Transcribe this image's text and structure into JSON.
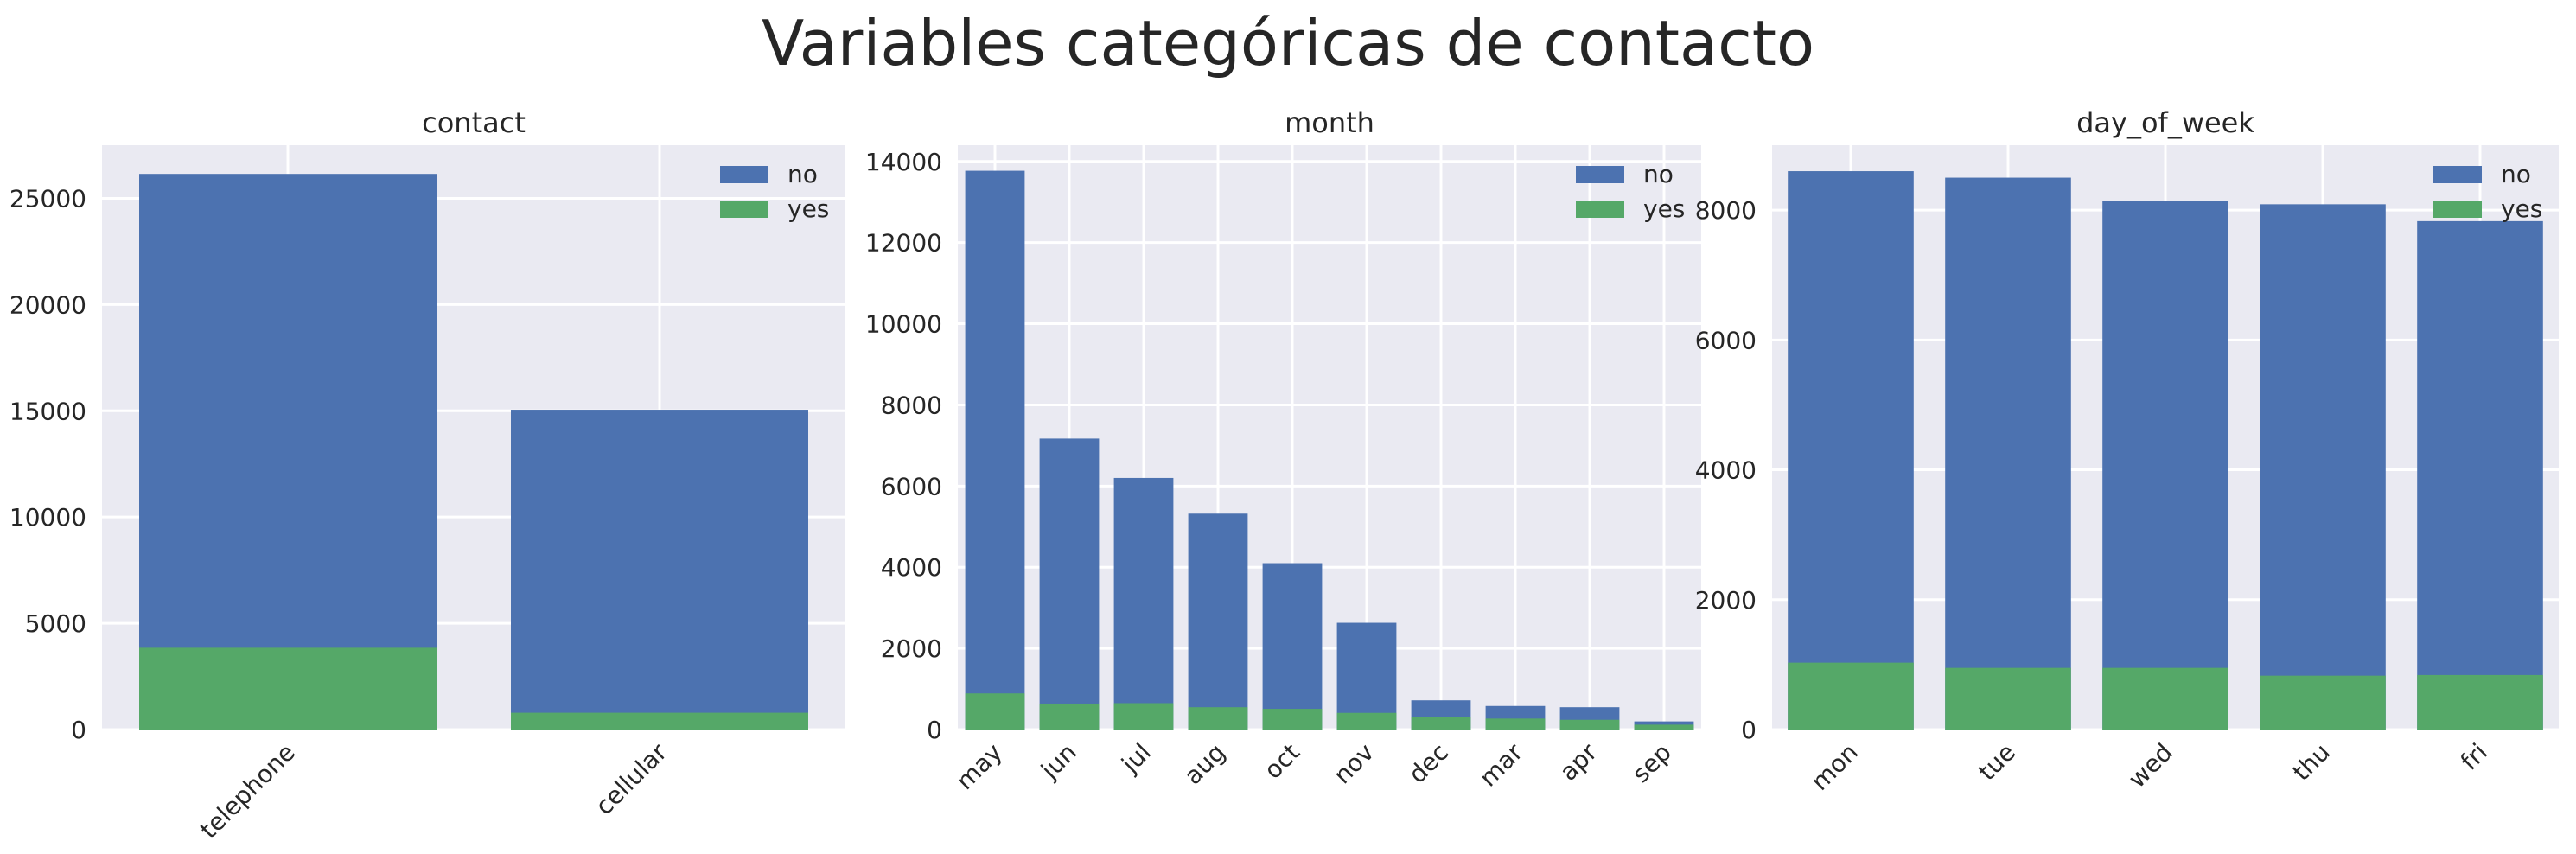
{
  "figure": {
    "title": "Variables categóricas de contacto",
    "colors": {
      "no": "#4C72B0",
      "yes": "#55A868",
      "axes_bg": "#EAEAF2",
      "grid": "#FFFFFF",
      "text": "#262626"
    }
  },
  "chart_data": [
    {
      "type": "bar",
      "title": "contact",
      "categories": [
        "telephone",
        "cellular"
      ],
      "series": [
        {
          "name": "no",
          "values": [
            26150,
            15050
          ]
        },
        {
          "name": "yes",
          "values": [
            3850,
            790
          ]
        }
      ],
      "ylim": [
        0,
        27500
      ],
      "yticks": [
        0,
        5000,
        10000,
        15000,
        20000,
        25000
      ],
      "grid": true,
      "legend": "top-right",
      "stacking": "overlaid"
    },
    {
      "type": "bar",
      "title": "month",
      "categories": [
        "may",
        "jun",
        "jul",
        "aug",
        "oct",
        "nov",
        "dec",
        "mar",
        "apr",
        "sep"
      ],
      "series": [
        {
          "name": "no",
          "values": [
            13770,
            7170,
            6200,
            5320,
            4100,
            2630,
            720,
            580,
            550,
            200
          ]
        },
        {
          "name": "yes",
          "values": [
            890,
            640,
            650,
            550,
            510,
            410,
            300,
            270,
            240,
            120
          ]
        }
      ],
      "ylim": [
        0,
        14400
      ],
      "yticks": [
        0,
        2000,
        4000,
        6000,
        8000,
        10000,
        12000,
        14000
      ],
      "grid": true,
      "legend": "top-right",
      "stacking": "overlaid"
    },
    {
      "type": "bar",
      "title": "day_of_week",
      "categories": [
        "mon",
        "tue",
        "wed",
        "thu",
        "fri"
      ],
      "series": [
        {
          "name": "no",
          "values": [
            8600,
            8500,
            8140,
            8090,
            7830
          ]
        },
        {
          "name": "yes",
          "values": [
            1030,
            950,
            950,
            830,
            840
          ]
        }
      ],
      "ylim": [
        0,
        9000
      ],
      "yticks": [
        0,
        2000,
        4000,
        6000,
        8000
      ],
      "grid": true,
      "legend": "top-right",
      "stacking": "overlaid"
    }
  ]
}
